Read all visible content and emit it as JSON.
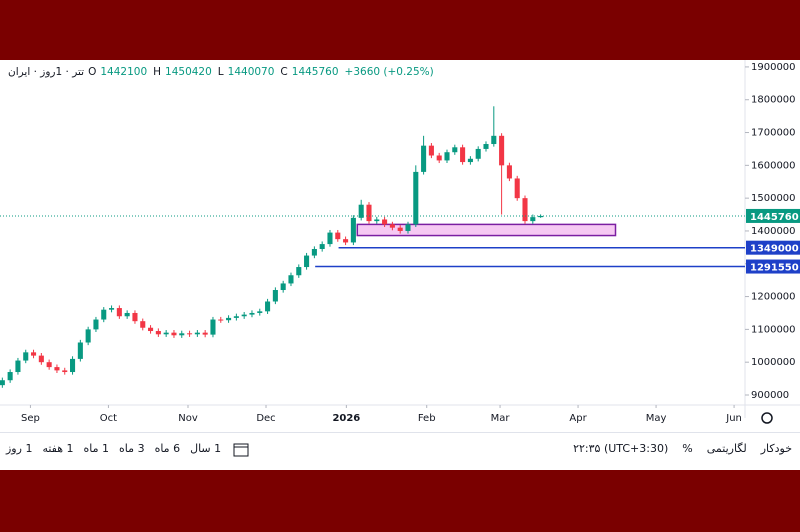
{
  "chart_data": {
    "type": "candlestick",
    "title": "تتر · 1روز · ایران",
    "ohlc_labels": [
      "O",
      "H",
      "L",
      "C"
    ],
    "change": "+3660 (+0.25%)",
    "categories": [
      null,
      null,
      null,
      null,
      null,
      null,
      null,
      null,
      null,
      null,
      null,
      null,
      null,
      null,
      null,
      null,
      null,
      null,
      null,
      null,
      null,
      null,
      null,
      null,
      null,
      null,
      null,
      null,
      null,
      null,
      null,
      null,
      null,
      null,
      null,
      null,
      null,
      null,
      null,
      null,
      null,
      null,
      null,
      null,
      null,
      null,
      null,
      null,
      null,
      null,
      null,
      null,
      null,
      null,
      null,
      null,
      null,
      null,
      null,
      null,
      null,
      null,
      null,
      null,
      null,
      null,
      null,
      null,
      null,
      null
    ],
    "open": [
      930000,
      945000,
      970000,
      1005000,
      1030000,
      1020000,
      1000000,
      985000,
      975000,
      970000,
      1010000,
      1060000,
      1100000,
      1130000,
      1160000,
      1165000,
      1140000,
      1150000,
      1125000,
      1105000,
      1095000,
      1085000,
      1090000,
      1082000,
      1088000,
      1085000,
      1090000,
      1084000,
      1130000,
      1128000,
      1135000,
      1140000,
      1145000,
      1150000,
      1155000,
      1185000,
      1220000,
      1240000,
      1265000,
      1290000,
      1325000,
      1345000,
      1360000,
      1395000,
      1375000,
      1365000,
      1440000,
      1480000,
      1430000,
      1435000,
      1420000,
      1410000,
      1400000,
      1420000,
      1580000,
      1660000,
      1630000,
      1615000,
      1640000,
      1655000,
      1610000,
      1620000,
      1650000,
      1665000,
      1690000,
      1600000,
      1560000,
      1500000,
      1430000,
      1442100
    ],
    "high": [
      953000,
      978000,
      1013000,
      1038000,
      1038000,
      1028000,
      1008000,
      993000,
      983000,
      1018000,
      1068000,
      1108000,
      1138000,
      1168000,
      1173000,
      1173000,
      1158000,
      1158000,
      1133000,
      1113000,
      1103000,
      1098000,
      1098000,
      1096000,
      1096000,
      1098000,
      1098000,
      1138000,
      1138000,
      1143000,
      1148000,
      1153000,
      1158000,
      1163000,
      1193000,
      1228000,
      1248000,
      1273000,
      1298000,
      1333000,
      1353000,
      1368000,
      1403000,
      1403000,
      1383000,
      1448000,
      1495000,
      1488000,
      1443000,
      1443000,
      1428000,
      1418000,
      1428000,
      1600000,
      1690000,
      1668000,
      1638000,
      1648000,
      1663000,
      1663000,
      1628000,
      1658000,
      1673000,
      1780000,
      1698000,
      1608000,
      1568000,
      1508000,
      1450100,
      1450420
    ],
    "low": [
      922000,
      937000,
      962000,
      997000,
      1012000,
      992000,
      977000,
      967000,
      962000,
      962000,
      1002000,
      1052000,
      1092000,
      1122000,
      1152000,
      1132000,
      1132000,
      1117000,
      1097000,
      1087000,
      1077000,
      1077000,
      1074000,
      1074000,
      1077000,
      1077000,
      1076000,
      1076000,
      1120000,
      1120000,
      1127000,
      1132000,
      1137000,
      1142000,
      1147000,
      1177000,
      1212000,
      1232000,
      1257000,
      1282000,
      1317000,
      1337000,
      1352000,
      1367000,
      1357000,
      1357000,
      1432000,
      1422000,
      1422000,
      1412000,
      1402000,
      1392000,
      1392000,
      1412000,
      1572000,
      1622000,
      1607000,
      1607000,
      1632000,
      1602000,
      1602000,
      1612000,
      1642000,
      1657000,
      1450000,
      1552000,
      1492000,
      1422000,
      1422000,
      1440070
    ],
    "close": [
      945000,
      970000,
      1005000,
      1030000,
      1020000,
      1000000,
      985000,
      975000,
      970000,
      1010000,
      1060000,
      1100000,
      1130000,
      1160000,
      1165000,
      1140000,
      1150000,
      1125000,
      1105000,
      1095000,
      1085000,
      1090000,
      1082000,
      1088000,
      1085000,
      1090000,
      1084000,
      1130000,
      1128000,
      1135000,
      1140000,
      1145000,
      1150000,
      1155000,
      1185000,
      1220000,
      1240000,
      1265000,
      1290000,
      1325000,
      1345000,
      1360000,
      1395000,
      1375000,
      1365000,
      1440000,
      1480000,
      1430000,
      1435000,
      1420000,
      1410000,
      1400000,
      1420000,
      1580000,
      1660000,
      1630000,
      1615000,
      1640000,
      1655000,
      1610000,
      1620000,
      1650000,
      1665000,
      1690000,
      1600000,
      1560000,
      1500000,
      1430000,
      1442100,
      1445760
    ],
    "up_color": "#089981",
    "down_color": "#f23645",
    "ylim": [
      869500,
      1915000
    ],
    "yticks": [
      900000,
      1000000,
      1100000,
      1200000,
      1300000,
      1400000,
      1500000,
      1600000,
      1700000,
      1800000,
      1900000
    ],
    "xlim": [
      -0.3,
      95.2
    ],
    "xticks": [
      {
        "value": 3.6,
        "label": "Sep"
      },
      {
        "value": 13.6,
        "label": "Oct"
      },
      {
        "value": 23.8,
        "label": "Nov"
      },
      {
        "value": 33.8,
        "label": "Dec"
      },
      {
        "value": 44.1,
        "label": "2026"
      },
      {
        "value": 54.4,
        "label": "Feb"
      },
      {
        "value": 63.8,
        "label": "Mar"
      },
      {
        "value": 73.8,
        "label": "Apr"
      },
      {
        "value": 83.8,
        "label": "May"
      },
      {
        "value": 93.8,
        "label": "Jun"
      }
    ],
    "levels": [
      {
        "value": 1349000,
        "start": 43.1,
        "color": "#1e40c8"
      },
      {
        "value": 1291550,
        "start": 40.1,
        "color": "#1e40c8"
      }
    ],
    "zone": {
      "low": 1386000,
      "high": 1420000,
      "start": 45.5,
      "end": 78.6,
      "fill": "#f6c9f3",
      "stroke": "#7b1fa2"
    }
  },
  "toolbar": {
    "intervals": [
      "1 روز",
      "1 هفته",
      "1 ماه",
      "3 ماه",
      "6 ماه",
      "1 سال"
    ],
    "time": "۲۲:۳۵ (UTC+3:30)",
    "percent": "%",
    "log": "لگاریتمی",
    "auto": "خودکار"
  }
}
